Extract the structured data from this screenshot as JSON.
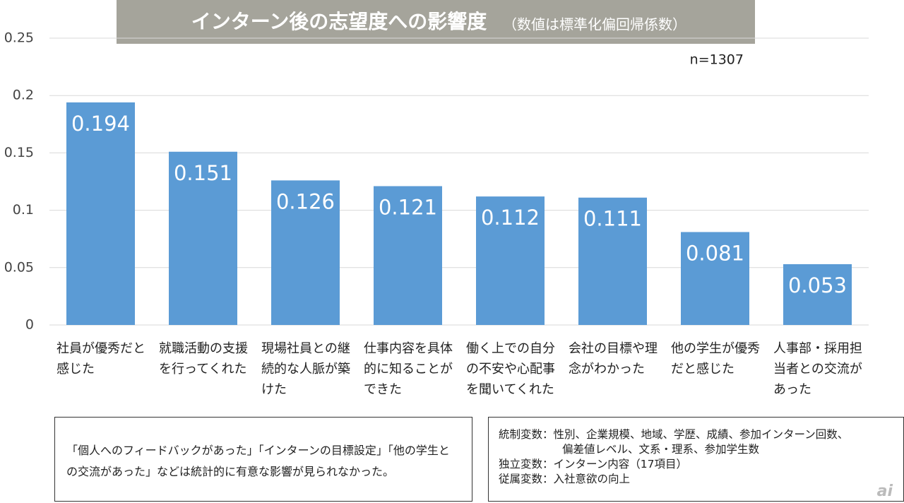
{
  "chart_data": {
    "type": "bar",
    "title": "インターン後の志望度への影響度",
    "subtitle": "（数値は標準化偏回帰係数）",
    "annotation": "n=1307",
    "categories": [
      "社員が優秀だと感じた",
      "就職活動の支援を行ってくれた",
      "現場社員との継続的な人脈が築けた",
      "仕事内容を具体的に知ることができた",
      "働く上での自分の不安や心配事を聞いてくれた",
      "会社の目標や理念がわかった",
      "他の学生が優秀だと感じた",
      "人事部・採用担当者との交流があった"
    ],
    "values": [
      0.194,
      0.151,
      0.126,
      0.121,
      0.112,
      0.111,
      0.081,
      0.053
    ],
    "color": "#5b9bd5",
    "ylim": [
      0,
      0.25
    ],
    "yticks": [
      0,
      0.05,
      0.1,
      0.15,
      0.2,
      0.25
    ],
    "grid": true
  },
  "notes": {
    "left": "「個人へのフィードバックがあった」「インターンの目標設定」「他の学生との交流があった」などは統計的に有意な影響が見られなかった。",
    "right": [
      "統制変数：性別、企業規模、地域、学歴、成績、参加インターン回数、",
      "偏差値レベル、文系・理系、参加学生数",
      "独立変数：インターン内容（17項目）",
      "従属変数：入社意欲の向上"
    ]
  },
  "logo": "ai"
}
